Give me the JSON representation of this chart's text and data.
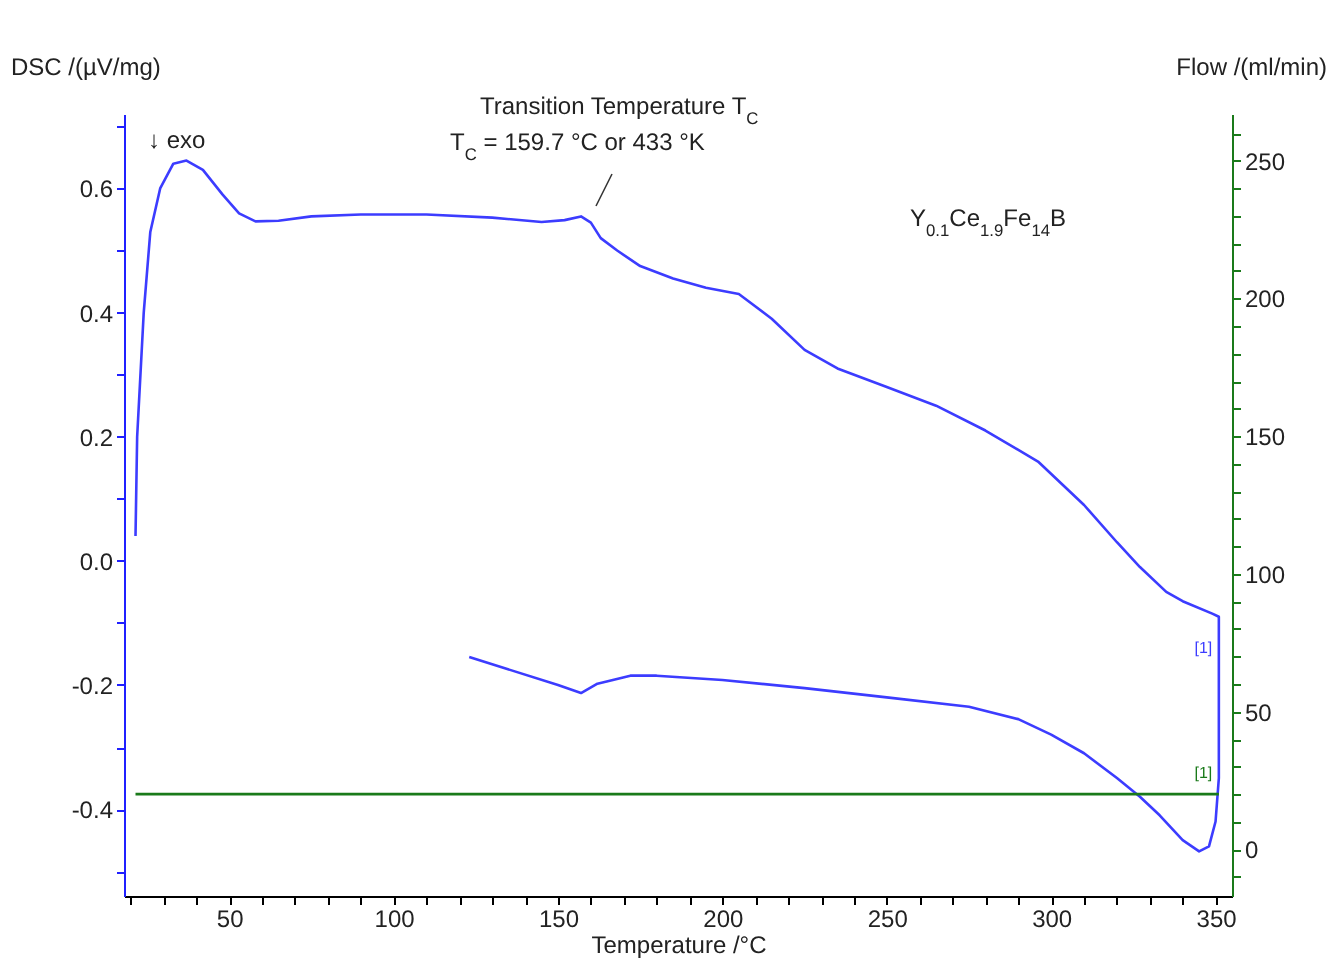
{
  "chart_data": {
    "type": "line",
    "xlabel": "Temperature /°C",
    "ylabel": "DSC /(µV/mg)",
    "y2label": "Flow /(ml/min)",
    "xlim": [
      18,
      355
    ],
    "ylim": [
      -0.54,
      0.72
    ],
    "y2lim": [
      -17,
      267
    ],
    "xticks": [
      {
        "value": 20,
        "label": null
      },
      {
        "value": 30,
        "label": null
      },
      {
        "value": 40,
        "label": null
      },
      50,
      {
        "value": 60,
        "label": null
      },
      {
        "value": 70,
        "label": null
      },
      {
        "value": 80,
        "label": null
      },
      {
        "value": 90,
        "label": null
      },
      100,
      {
        "value": 110,
        "label": null
      },
      {
        "value": 120,
        "label": null
      },
      {
        "value": 130,
        "label": null
      },
      {
        "value": 140,
        "label": null
      },
      150,
      {
        "value": 160,
        "label": null
      },
      {
        "value": 170,
        "label": null
      },
      {
        "value": 180,
        "label": null
      },
      {
        "value": 190,
        "label": null
      },
      200,
      {
        "value": 210,
        "label": null
      },
      {
        "value": 220,
        "label": null
      },
      {
        "value": 230,
        "label": null
      },
      {
        "value": 240,
        "label": null
      },
      250,
      {
        "value": 260,
        "label": null
      },
      {
        "value": 270,
        "label": null
      },
      {
        "value": 280,
        "label": null
      },
      {
        "value": 290,
        "label": null
      },
      300,
      {
        "value": 310,
        "label": null
      },
      {
        "value": 320,
        "label": null
      },
      {
        "value": 330,
        "label": null
      },
      {
        "value": 340,
        "label": null
      },
      350
    ],
    "yticks": [
      {
        "value": -0.5,
        "label": null
      },
      {
        "value": -0.4,
        "label": "-0.4"
      },
      {
        "value": -0.3,
        "label": null
      },
      {
        "value": -0.2,
        "label": "-0.2"
      },
      {
        "value": -0.1,
        "label": null
      },
      {
        "value": 0,
        "label": "0.0"
      },
      {
        "value": 0.1,
        "label": null
      },
      {
        "value": 0.2,
        "label": "0.2"
      },
      {
        "value": 0.3,
        "label": null
      },
      {
        "value": 0.4,
        "label": "0.4"
      },
      {
        "value": 0.5,
        "label": null
      },
      {
        "value": 0.6,
        "label": "0.6"
      },
      {
        "value": 0.7,
        "label": null
      }
    ],
    "y2ticks": [
      {
        "value": -10,
        "label": null
      },
      0,
      {
        "value": 10,
        "label": null
      },
      {
        "value": 20,
        "label": null
      },
      {
        "value": 30,
        "label": null
      },
      {
        "value": 40,
        "label": null
      },
      50,
      {
        "value": 60,
        "label": null
      },
      {
        "value": 70,
        "label": null
      },
      {
        "value": 80,
        "label": null
      },
      {
        "value": 90,
        "label": null
      },
      100,
      {
        "value": 110,
        "label": null
      },
      {
        "value": 120,
        "label": null
      },
      {
        "value": 130,
        "label": null
      },
      {
        "value": 140,
        "label": null
      },
      150,
      {
        "value": 160,
        "label": null
      },
      {
        "value": 170,
        "label": null
      },
      {
        "value": 180,
        "label": null
      },
      {
        "value": 190,
        "label": null
      },
      200,
      {
        "value": 210,
        "label": null
      },
      {
        "value": 220,
        "label": null
      },
      {
        "value": 230,
        "label": null
      },
      {
        "value": 240,
        "label": null
      },
      250,
      {
        "value": 260,
        "label": null
      }
    ],
    "series": [
      {
        "color": "#3c3cff",
        "x": [
          21.5,
          22,
          24,
          26,
          29,
          33,
          37,
          42,
          48,
          53,
          58,
          65,
          75,
          90,
          110,
          130,
          145,
          152,
          157,
          160,
          163,
          168,
          175,
          185,
          195,
          205,
          215,
          225,
          235,
          250,
          265,
          280,
          296,
          310,
          320,
          327,
          335,
          340,
          349,
          351,
          351,
          351,
          350,
          348,
          345,
          340,
          333,
          327,
          320,
          310,
          300,
          290,
          275,
          250,
          225,
          200,
          180,
          172,
          162,
          157,
          150,
          123
        ],
        "values": [
          0.04,
          0.2,
          0.4,
          0.53,
          0.6,
          0.64,
          0.645,
          0.63,
          0.59,
          0.56,
          0.547,
          0.548,
          0.555,
          0.558,
          0.558,
          0.553,
          0.546,
          0.549,
          0.555,
          0.545,
          0.52,
          0.5,
          0.475,
          0.455,
          0.44,
          0.43,
          0.39,
          0.34,
          0.31,
          0.28,
          0.25,
          0.21,
          0.16,
          0.09,
          0.03,
          -0.01,
          -0.05,
          -0.065,
          -0.085,
          -0.09,
          -0.2,
          -0.35,
          -0.42,
          -0.46,
          -0.468,
          -0.45,
          -0.41,
          -0.38,
          -0.35,
          -0.31,
          -0.28,
          -0.255,
          -0.235,
          -0.22,
          -0.205,
          -0.192,
          -0.185,
          -0.185,
          -0.198,
          -0.213,
          -0.2,
          -0.155
        ]
      },
      {
        "color": "#1a7a1a",
        "axis": "y2",
        "x": [
          21.5,
          351
        ],
        "values": [
          20,
          20
        ]
      }
    ],
    "annotations": [
      "↓ exo",
      "Transition Temperature T$_{C}$",
      "T$_{C}$ = 159.7 °C or 433 °K",
      "Y$_{0.1}$Ce$_{1.9}$Fe$_{14}$B",
      {
        "text": "[1]",
        "x": 349,
        "y": -0.142
      },
      {
        "text": "[1]",
        "x": 349,
        "y": -0.37
      }
    ],
    "grid": false,
    "line_style": "solid"
  }
}
